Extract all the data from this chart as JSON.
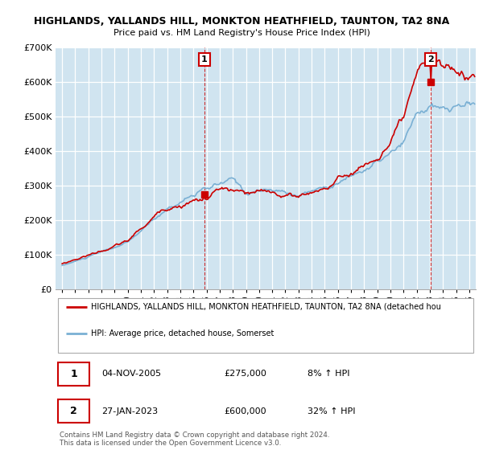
{
  "title": "HIGHLANDS, YALLANDS HILL, MONKTON HEATHFIELD, TAUNTON, TA2 8NA",
  "subtitle": "Price paid vs. HM Land Registry's House Price Index (HPI)",
  "ylim": [
    0,
    700000
  ],
  "yticks": [
    0,
    100000,
    200000,
    300000,
    400000,
    500000,
    600000,
    700000
  ],
  "ytick_labels": [
    "£0",
    "£100K",
    "£200K",
    "£300K",
    "£400K",
    "£500K",
    "£600K",
    "£700K"
  ],
  "red_color": "#cc0000",
  "blue_color": "#7ab0d4",
  "blue_fill": "#d0e4f0",
  "grid_color": "#cccccc",
  "bg_color": "#ffffff",
  "point1_x": 2005.84,
  "point1_y": 275000,
  "point2_x": 2023.07,
  "point2_y": 600000,
  "legend_line1": "HIGHLANDS, YALLANDS HILL, MONKTON HEATHFIELD, TAUNTON, TA2 8NA (detached hou",
  "legend_line2": "HPI: Average price, detached house, Somerset",
  "table_row1": [
    "1",
    "04-NOV-2005",
    "£275,000",
    "8% ↑ HPI"
  ],
  "table_row2": [
    "2",
    "27-JAN-2023",
    "£600,000",
    "32% ↑ HPI"
  ],
  "footer1": "Contains HM Land Registry data © Crown copyright and database right 2024.",
  "footer2": "This data is licensed under the Open Government Licence v3.0.",
  "xmin": 1994.5,
  "xmax": 2026.5
}
